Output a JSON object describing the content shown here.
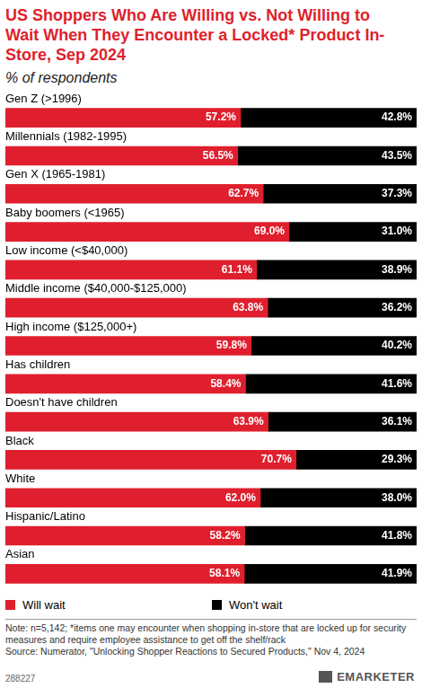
{
  "chart_data": {
    "type": "bar",
    "orientation": "horizontal",
    "stacked": true,
    "title": "US Shoppers Who Are Willing vs. Not Willing to Wait When They Encounter a Locked* Product In-Store, Sep 2024",
    "subtitle": "% of respondents",
    "categories": [
      "Gen Z (>1996)",
      "Millennials (1982-1995)",
      "Gen X (1965-1981)",
      "Baby boomers (<1965)",
      "Low income (<$40,000)",
      "Middle income ($40,000-$125,000)",
      "High income ($125,000+)",
      "Has children",
      "Doesn't have children",
      "Black",
      "White",
      "Hispanic/Latino",
      "Asian"
    ],
    "series": [
      {
        "name": "Will wait",
        "color": "#df1f2d",
        "values": [
          57.2,
          56.5,
          62.7,
          69.0,
          61.1,
          63.8,
          59.8,
          58.4,
          63.9,
          70.7,
          62.0,
          58.2,
          58.1
        ],
        "value_labels": [
          "57.2%",
          "56.5%",
          "62.7%",
          "69.0%",
          "61.1%",
          "63.8%",
          "59.8%",
          "58.4%",
          "63.9%",
          "70.7%",
          "62.0%",
          "58.2%",
          "58.1%"
        ]
      },
      {
        "name": "Won't wait",
        "color": "#000000",
        "values": [
          42.8,
          43.5,
          37.3,
          31.0,
          38.9,
          36.2,
          40.2,
          41.6,
          36.1,
          29.3,
          38.0,
          41.8,
          41.9
        ],
        "value_labels": [
          "42.8%",
          "43.5%",
          "37.3%",
          "31.0%",
          "38.9%",
          "36.2%",
          "40.2%",
          "41.6%",
          "36.1%",
          "29.3%",
          "38.0%",
          "41.8%",
          "41.9%"
        ]
      }
    ],
    "xlim": [
      0,
      100
    ],
    "grid": false,
    "data_labels": true,
    "tick_labels": "y",
    "legend": "bottom left",
    "note": "Note: n=5,142; *items one may encounter when shopping in-store that are locked up for security measures and require employee assistance to get off the shelf/rack",
    "source": "Source: Numerator, \"Unlocking Shopper Reactions to Secured Products,\" Nov 4, 2024",
    "chart_id": "288227",
    "logo": "EMARKETER"
  }
}
